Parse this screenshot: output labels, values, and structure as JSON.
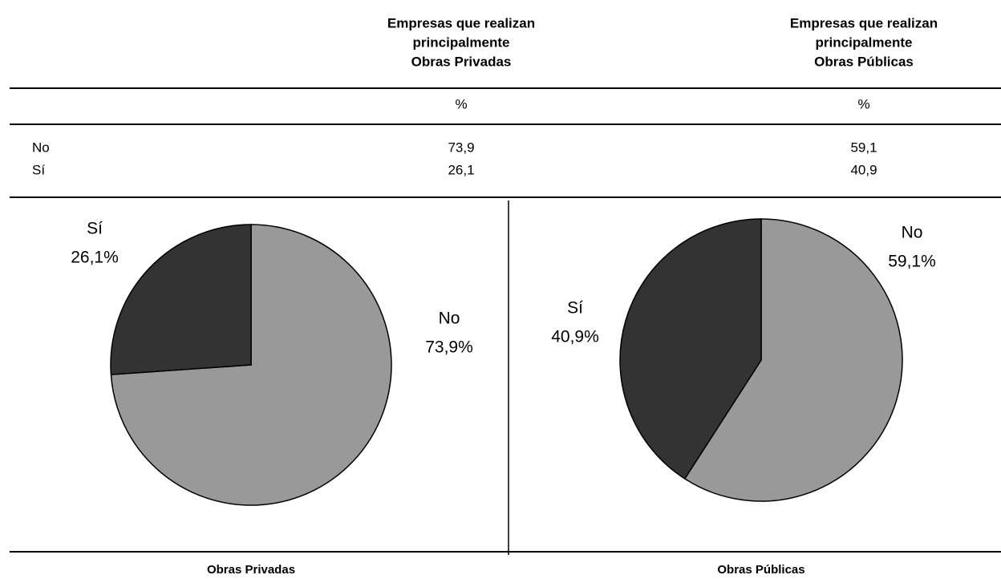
{
  "table": {
    "columns": [
      [
        "Empresas que realizan",
        "principalmente",
        "Obras Privadas"
      ],
      [
        "Empresas que realizan",
        "principalmente",
        "Obras Públicas"
      ]
    ],
    "units": [
      "%",
      "%"
    ],
    "rows": [
      [
        "No",
        "73,9",
        "59,1"
      ],
      [
        "Sí",
        "26,1",
        "40,9"
      ]
    ]
  },
  "chart_data": [
    {
      "type": "pie",
      "title": "Obras Privadas",
      "categories": [
        "No",
        "Sí"
      ],
      "values": [
        73.9,
        26.1
      ],
      "value_labels": [
        "73,9%",
        "26,1%"
      ],
      "colors": [
        "#999999",
        "#333333"
      ]
    },
    {
      "type": "pie",
      "title": "Obras Públicas",
      "categories": [
        "No",
        "Sí"
      ],
      "values": [
        59.1,
        40.9
      ],
      "value_labels": [
        "59,1%",
        "40,9%"
      ],
      "colors": [
        "#999999",
        "#333333"
      ]
    }
  ]
}
